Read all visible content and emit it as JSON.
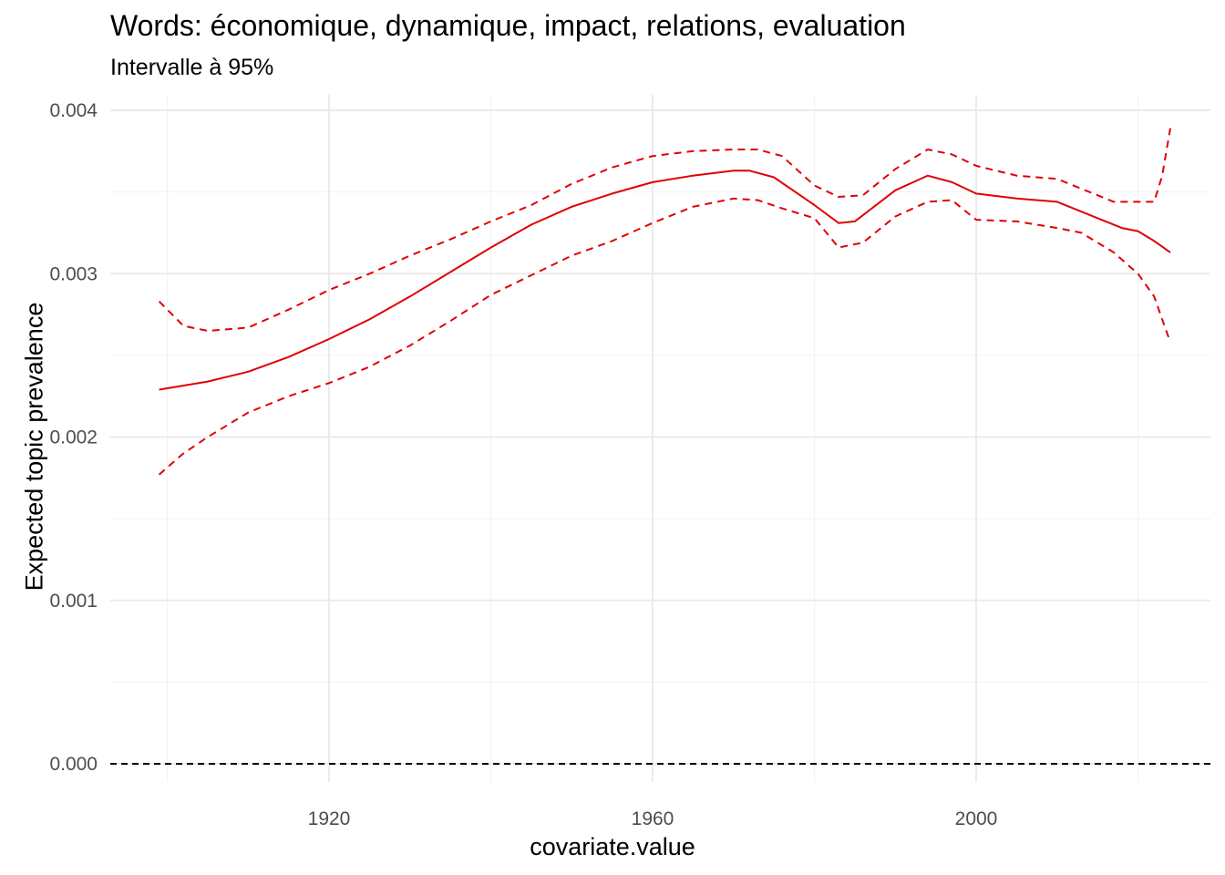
{
  "chart_data": {
    "type": "line",
    "title": "Words: économique, dynamique, impact, relations, evaluation",
    "subtitle": "Intervalle à 95%",
    "xlabel": "covariate.value",
    "ylabel": "Expected topic prevalence",
    "xlim": [
      1893,
      2027
    ],
    "ylim": [
      -0.00018,
      0.004
    ],
    "x_ticks": [
      1920,
      1960,
      2000
    ],
    "x_tick_labels": [
      "1920",
      "1960",
      "2000"
    ],
    "y_ticks": [
      0.0,
      0.001,
      0.002,
      0.003,
      0.004
    ],
    "y_tick_labels": [
      "0.000",
      "0.001",
      "0.002",
      "0.003",
      "0.004"
    ],
    "grid": true,
    "reference_line": {
      "y": 0.0,
      "style": "dashed",
      "color": "#000000"
    },
    "series": [
      {
        "style": "solid",
        "color": "#e00000",
        "x": [
          1899,
          1905,
          1910,
          1915,
          1920,
          1925,
          1930,
          1935,
          1940,
          1945,
          1950,
          1955,
          1960,
          1965,
          1970,
          1972,
          1975,
          1980,
          1983,
          1985,
          1990,
          1994,
          1997,
          2000,
          2005,
          2010,
          2015,
          2018,
          2020,
          2022,
          2024
        ],
        "y": [
          0.00229,
          0.00234,
          0.0024,
          0.00249,
          0.0026,
          0.00272,
          0.00286,
          0.00301,
          0.00316,
          0.0033,
          0.00341,
          0.00349,
          0.00356,
          0.0036,
          0.00363,
          0.00363,
          0.00359,
          0.00342,
          0.00331,
          0.00332,
          0.00351,
          0.0036,
          0.00356,
          0.00349,
          0.00346,
          0.00344,
          0.00334,
          0.00328,
          0.00326,
          0.0032,
          0.00313
        ]
      },
      {
        "style": "dashed",
        "color": "#e00000",
        "x": [
          1899,
          1902,
          1905,
          1910,
          1915,
          1920,
          1925,
          1930,
          1935,
          1940,
          1945,
          1950,
          1955,
          1960,
          1965,
          1970,
          1973,
          1976,
          1980,
          1983,
          1986,
          1990,
          1994,
          1997,
          2000,
          2005,
          2010,
          2013,
          2017,
          2020,
          2022,
          2023,
          2024
        ],
        "y": [
          0.00283,
          0.00268,
          0.00265,
          0.00267,
          0.00278,
          0.0029,
          0.003,
          0.00311,
          0.00321,
          0.00332,
          0.00342,
          0.00355,
          0.00365,
          0.00372,
          0.00375,
          0.00376,
          0.00376,
          0.00372,
          0.00354,
          0.00347,
          0.00348,
          0.00364,
          0.00376,
          0.00373,
          0.00366,
          0.0036,
          0.00358,
          0.00352,
          0.00344,
          0.00344,
          0.00344,
          0.0036,
          0.00389
        ]
      },
      {
        "style": "dashed",
        "color": "#e00000",
        "x": [
          1899,
          1902,
          1905,
          1910,
          1915,
          1920,
          1925,
          1930,
          1935,
          1940,
          1945,
          1950,
          1955,
          1960,
          1965,
          1970,
          1973,
          1976,
          1980,
          1983,
          1986,
          1990,
          1994,
          1997,
          2000,
          2005,
          2010,
          2013,
          2017,
          2020,
          2022,
          2023,
          2024
        ],
        "y": [
          0.00177,
          0.0019,
          0.002,
          0.00215,
          0.00225,
          0.00233,
          0.00243,
          0.00256,
          0.00271,
          0.00287,
          0.00299,
          0.00311,
          0.0032,
          0.00331,
          0.00341,
          0.00346,
          0.00345,
          0.0034,
          0.00334,
          0.00316,
          0.00319,
          0.00335,
          0.00344,
          0.00345,
          0.00333,
          0.00332,
          0.00328,
          0.00325,
          0.00313,
          0.003,
          0.00286,
          0.00272,
          0.00258
        ]
      }
    ]
  }
}
